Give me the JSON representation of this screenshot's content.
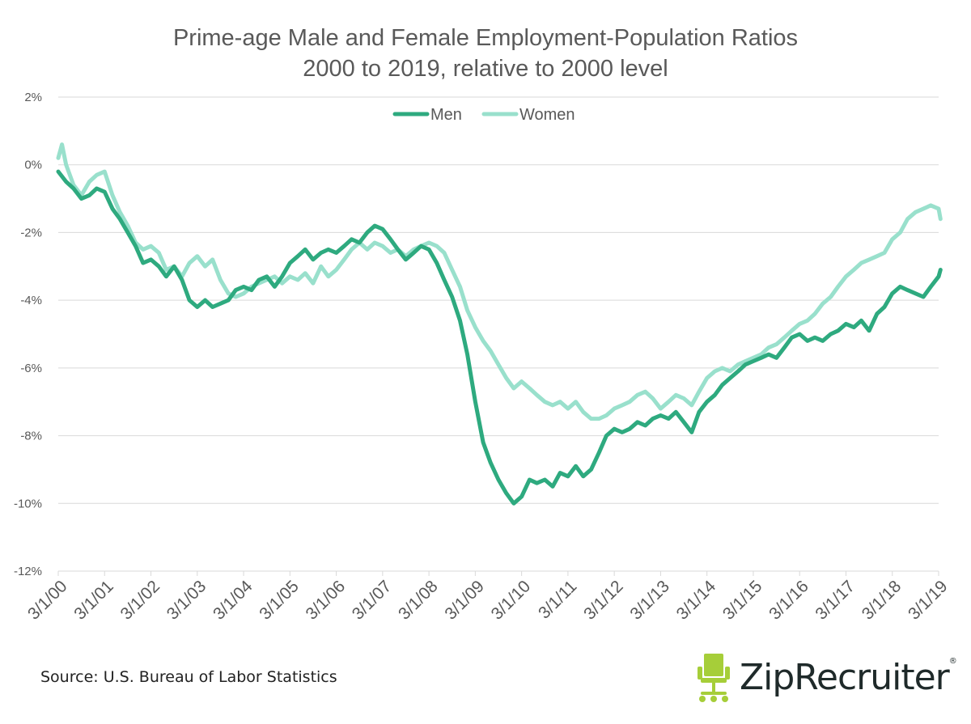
{
  "chart_data": {
    "type": "line",
    "title": "Prime-age Male and Female Employment-Population Ratios",
    "subtitle": "2000 to 2019, relative to 2000 level",
    "xlabel": "",
    "ylabel": "",
    "ylim": [
      -12,
      2
    ],
    "xlim": [
      2000,
      2019
    ],
    "yticks": [
      {
        "value": 2,
        "label": "2%"
      },
      {
        "value": 0,
        "label": "0%"
      },
      {
        "value": -2,
        "label": "-2%"
      },
      {
        "value": -4,
        "label": "-4%"
      },
      {
        "value": -6,
        "label": "-6%"
      },
      {
        "value": -8,
        "label": "-8%"
      },
      {
        "value": -10,
        "label": "-10%"
      },
      {
        "value": -12,
        "label": "-12%"
      }
    ],
    "xticks": [
      {
        "value": 2000,
        "label": "3/1/00"
      },
      {
        "value": 2001,
        "label": "3/1/01"
      },
      {
        "value": 2002,
        "label": "3/1/02"
      },
      {
        "value": 2003,
        "label": "3/1/03"
      },
      {
        "value": 2004,
        "label": "3/1/04"
      },
      {
        "value": 2005,
        "label": "3/1/05"
      },
      {
        "value": 2006,
        "label": "3/1/06"
      },
      {
        "value": 2007,
        "label": "3/1/07"
      },
      {
        "value": 2008,
        "label": "3/1/08"
      },
      {
        "value": 2009,
        "label": "3/1/09"
      },
      {
        "value": 2010,
        "label": "3/1/10"
      },
      {
        "value": 2011,
        "label": "3/1/11"
      },
      {
        "value": 2012,
        "label": "3/1/12"
      },
      {
        "value": 2013,
        "label": "3/1/13"
      },
      {
        "value": 2014,
        "label": "3/1/14"
      },
      {
        "value": 2015,
        "label": "3/1/15"
      },
      {
        "value": 2016,
        "label": "3/1/16"
      },
      {
        "value": 2017,
        "label": "3/1/17"
      },
      {
        "value": 2018,
        "label": "3/1/18"
      },
      {
        "value": 2019,
        "label": "3/1/19"
      }
    ],
    "grid": true,
    "legend": "top-center",
    "series": [
      {
        "name": "Men",
        "color": "#2eaa7f",
        "points": [
          [
            2000.0,
            -0.2
          ],
          [
            2000.17,
            -0.5
          ],
          [
            2000.33,
            -0.7
          ],
          [
            2000.5,
            -1.0
          ],
          [
            2000.67,
            -0.9
          ],
          [
            2000.83,
            -0.7
          ],
          [
            2001.0,
            -0.8
          ],
          [
            2001.17,
            -1.3
          ],
          [
            2001.33,
            -1.6
          ],
          [
            2001.5,
            -2.0
          ],
          [
            2001.67,
            -2.4
          ],
          [
            2001.83,
            -2.9
          ],
          [
            2002.0,
            -2.8
          ],
          [
            2002.17,
            -3.0
          ],
          [
            2002.33,
            -3.3
          ],
          [
            2002.5,
            -3.0
          ],
          [
            2002.67,
            -3.4
          ],
          [
            2002.83,
            -4.0
          ],
          [
            2003.0,
            -4.2
          ],
          [
            2003.17,
            -4.0
          ],
          [
            2003.33,
            -4.2
          ],
          [
            2003.5,
            -4.1
          ],
          [
            2003.67,
            -4.0
          ],
          [
            2003.83,
            -3.7
          ],
          [
            2004.0,
            -3.6
          ],
          [
            2004.17,
            -3.7
          ],
          [
            2004.33,
            -3.4
          ],
          [
            2004.5,
            -3.3
          ],
          [
            2004.67,
            -3.6
          ],
          [
            2004.83,
            -3.3
          ],
          [
            2005.0,
            -2.9
          ],
          [
            2005.17,
            -2.7
          ],
          [
            2005.33,
            -2.5
          ],
          [
            2005.5,
            -2.8
          ],
          [
            2005.67,
            -2.6
          ],
          [
            2005.83,
            -2.5
          ],
          [
            2006.0,
            -2.6
          ],
          [
            2006.17,
            -2.4
          ],
          [
            2006.33,
            -2.2
          ],
          [
            2006.5,
            -2.3
          ],
          [
            2006.67,
            -2.0
          ],
          [
            2006.83,
            -1.8
          ],
          [
            2007.0,
            -1.9
          ],
          [
            2007.17,
            -2.2
          ],
          [
            2007.33,
            -2.5
          ],
          [
            2007.5,
            -2.8
          ],
          [
            2007.67,
            -2.6
          ],
          [
            2007.83,
            -2.4
          ],
          [
            2008.0,
            -2.5
          ],
          [
            2008.17,
            -2.9
          ],
          [
            2008.33,
            -3.4
          ],
          [
            2008.5,
            -3.9
          ],
          [
            2008.67,
            -4.6
          ],
          [
            2008.83,
            -5.6
          ],
          [
            2009.0,
            -7.0
          ],
          [
            2009.17,
            -8.2
          ],
          [
            2009.33,
            -8.8
          ],
          [
            2009.5,
            -9.3
          ],
          [
            2009.67,
            -9.7
          ],
          [
            2009.83,
            -10.0
          ],
          [
            2010.0,
            -9.8
          ],
          [
            2010.17,
            -9.3
          ],
          [
            2010.33,
            -9.4
          ],
          [
            2010.5,
            -9.3
          ],
          [
            2010.67,
            -9.5
          ],
          [
            2010.83,
            -9.1
          ],
          [
            2011.0,
            -9.2
          ],
          [
            2011.17,
            -8.9
          ],
          [
            2011.33,
            -9.2
          ],
          [
            2011.5,
            -9.0
          ],
          [
            2011.67,
            -8.5
          ],
          [
            2011.83,
            -8.0
          ],
          [
            2012.0,
            -7.8
          ],
          [
            2012.17,
            -7.9
          ],
          [
            2012.33,
            -7.8
          ],
          [
            2012.5,
            -7.6
          ],
          [
            2012.67,
            -7.7
          ],
          [
            2012.83,
            -7.5
          ],
          [
            2013.0,
            -7.4
          ],
          [
            2013.17,
            -7.5
          ],
          [
            2013.33,
            -7.3
          ],
          [
            2013.5,
            -7.6
          ],
          [
            2013.67,
            -7.9
          ],
          [
            2013.83,
            -7.3
          ],
          [
            2014.0,
            -7.0
          ],
          [
            2014.17,
            -6.8
          ],
          [
            2014.33,
            -6.5
          ],
          [
            2014.5,
            -6.3
          ],
          [
            2014.67,
            -6.1
          ],
          [
            2014.83,
            -5.9
          ],
          [
            2015.0,
            -5.8
          ],
          [
            2015.17,
            -5.7
          ],
          [
            2015.33,
            -5.6
          ],
          [
            2015.5,
            -5.7
          ],
          [
            2015.67,
            -5.4
          ],
          [
            2015.83,
            -5.1
          ],
          [
            2016.0,
            -5.0
          ],
          [
            2016.17,
            -5.2
          ],
          [
            2016.33,
            -5.1
          ],
          [
            2016.5,
            -5.2
          ],
          [
            2016.67,
            -5.0
          ],
          [
            2016.83,
            -4.9
          ],
          [
            2017.0,
            -4.7
          ],
          [
            2017.17,
            -4.8
          ],
          [
            2017.33,
            -4.6
          ],
          [
            2017.5,
            -4.9
          ],
          [
            2017.67,
            -4.4
          ],
          [
            2017.83,
            -4.2
          ],
          [
            2018.0,
            -3.8
          ],
          [
            2018.17,
            -3.6
          ],
          [
            2018.33,
            -3.7
          ],
          [
            2018.5,
            -3.8
          ],
          [
            2018.67,
            -3.9
          ],
          [
            2018.83,
            -3.6
          ],
          [
            2019.0,
            -3.3
          ],
          [
            2019.04,
            -3.1
          ]
        ]
      },
      {
        "name": "Women",
        "color": "#99e0cc",
        "points": [
          [
            2000.0,
            0.2
          ],
          [
            2000.08,
            0.6
          ],
          [
            2000.17,
            0.0
          ],
          [
            2000.33,
            -0.6
          ],
          [
            2000.5,
            -0.9
          ],
          [
            2000.67,
            -0.5
          ],
          [
            2000.83,
            -0.3
          ],
          [
            2001.0,
            -0.2
          ],
          [
            2001.17,
            -0.9
          ],
          [
            2001.33,
            -1.4
          ],
          [
            2001.5,
            -1.8
          ],
          [
            2001.67,
            -2.3
          ],
          [
            2001.83,
            -2.5
          ],
          [
            2002.0,
            -2.4
          ],
          [
            2002.17,
            -2.6
          ],
          [
            2002.33,
            -3.1
          ],
          [
            2002.5,
            -3.0
          ],
          [
            2002.67,
            -3.3
          ],
          [
            2002.83,
            -2.9
          ],
          [
            2003.0,
            -2.7
          ],
          [
            2003.17,
            -3.0
          ],
          [
            2003.33,
            -2.8
          ],
          [
            2003.5,
            -3.4
          ],
          [
            2003.67,
            -3.8
          ],
          [
            2003.83,
            -3.9
          ],
          [
            2004.0,
            -3.8
          ],
          [
            2004.17,
            -3.6
          ],
          [
            2004.33,
            -3.5
          ],
          [
            2004.5,
            -3.4
          ],
          [
            2004.67,
            -3.3
          ],
          [
            2004.83,
            -3.5
          ],
          [
            2005.0,
            -3.3
          ],
          [
            2005.17,
            -3.4
          ],
          [
            2005.33,
            -3.2
          ],
          [
            2005.5,
            -3.5
          ],
          [
            2005.67,
            -3.0
          ],
          [
            2005.83,
            -3.3
          ],
          [
            2006.0,
            -3.1
          ],
          [
            2006.17,
            -2.8
          ],
          [
            2006.33,
            -2.5
          ],
          [
            2006.5,
            -2.3
          ],
          [
            2006.67,
            -2.5
          ],
          [
            2006.83,
            -2.3
          ],
          [
            2007.0,
            -2.4
          ],
          [
            2007.17,
            -2.6
          ],
          [
            2007.33,
            -2.5
          ],
          [
            2007.5,
            -2.7
          ],
          [
            2007.67,
            -2.5
          ],
          [
            2007.83,
            -2.4
          ],
          [
            2008.0,
            -2.3
          ],
          [
            2008.17,
            -2.4
          ],
          [
            2008.33,
            -2.6
          ],
          [
            2008.5,
            -3.1
          ],
          [
            2008.67,
            -3.6
          ],
          [
            2008.83,
            -4.3
          ],
          [
            2009.0,
            -4.8
          ],
          [
            2009.17,
            -5.2
          ],
          [
            2009.33,
            -5.5
          ],
          [
            2009.5,
            -5.9
          ],
          [
            2009.67,
            -6.3
          ],
          [
            2009.83,
            -6.6
          ],
          [
            2010.0,
            -6.4
          ],
          [
            2010.17,
            -6.6
          ],
          [
            2010.33,
            -6.8
          ],
          [
            2010.5,
            -7.0
          ],
          [
            2010.67,
            -7.1
          ],
          [
            2010.83,
            -7.0
          ],
          [
            2011.0,
            -7.2
          ],
          [
            2011.17,
            -7.0
          ],
          [
            2011.33,
            -7.3
          ],
          [
            2011.5,
            -7.5
          ],
          [
            2011.67,
            -7.5
          ],
          [
            2011.83,
            -7.4
          ],
          [
            2012.0,
            -7.2
          ],
          [
            2012.17,
            -7.1
          ],
          [
            2012.33,
            -7.0
          ],
          [
            2012.5,
            -6.8
          ],
          [
            2012.67,
            -6.7
          ],
          [
            2012.83,
            -6.9
          ],
          [
            2013.0,
            -7.2
          ],
          [
            2013.17,
            -7.0
          ],
          [
            2013.33,
            -6.8
          ],
          [
            2013.5,
            -6.9
          ],
          [
            2013.67,
            -7.1
          ],
          [
            2013.83,
            -6.7
          ],
          [
            2014.0,
            -6.3
          ],
          [
            2014.17,
            -6.1
          ],
          [
            2014.33,
            -6.0
          ],
          [
            2014.5,
            -6.1
          ],
          [
            2014.67,
            -5.9
          ],
          [
            2014.83,
            -5.8
          ],
          [
            2015.0,
            -5.7
          ],
          [
            2015.17,
            -5.6
          ],
          [
            2015.33,
            -5.4
          ],
          [
            2015.5,
            -5.3
          ],
          [
            2015.67,
            -5.1
          ],
          [
            2015.83,
            -4.9
          ],
          [
            2016.0,
            -4.7
          ],
          [
            2016.17,
            -4.6
          ],
          [
            2016.33,
            -4.4
          ],
          [
            2016.5,
            -4.1
          ],
          [
            2016.67,
            -3.9
          ],
          [
            2016.83,
            -3.6
          ],
          [
            2017.0,
            -3.3
          ],
          [
            2017.17,
            -3.1
          ],
          [
            2017.33,
            -2.9
          ],
          [
            2017.5,
            -2.8
          ],
          [
            2017.67,
            -2.7
          ],
          [
            2017.83,
            -2.6
          ],
          [
            2018.0,
            -2.2
          ],
          [
            2018.17,
            -2.0
          ],
          [
            2018.33,
            -1.6
          ],
          [
            2018.5,
            -1.4
          ],
          [
            2018.67,
            -1.3
          ],
          [
            2018.83,
            -1.2
          ],
          [
            2019.0,
            -1.3
          ],
          [
            2019.04,
            -1.6
          ]
        ]
      }
    ]
  },
  "source": "Source: U.S. Bureau of Labor Statistics",
  "logo": {
    "text": "ZipRecruiter",
    "mark": "®",
    "chair_icon": "office-chair-icon",
    "color": "#a6ce39"
  }
}
